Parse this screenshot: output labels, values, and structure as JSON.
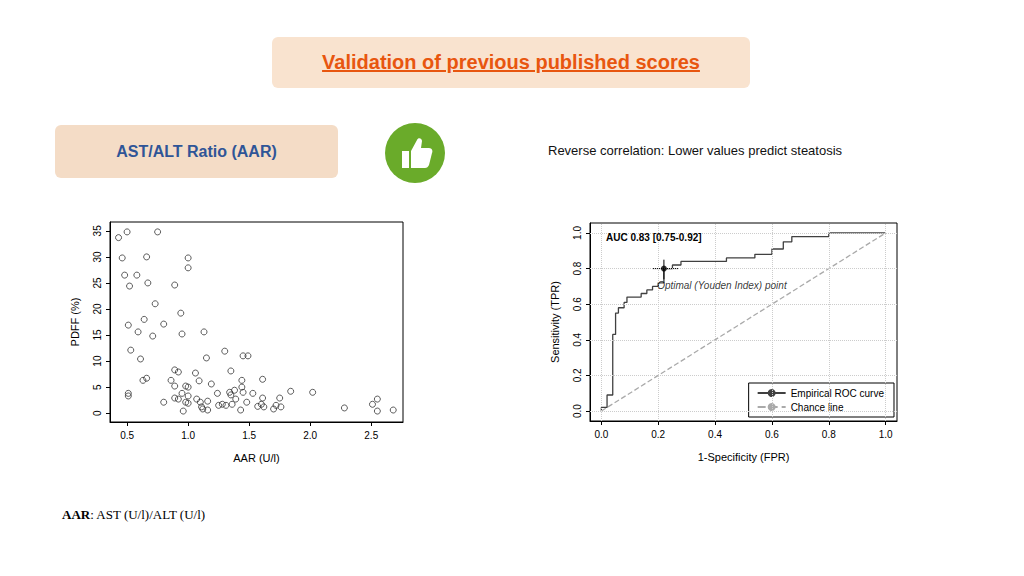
{
  "header": {
    "title": "Validation of previous published scores"
  },
  "label": "AST/ALT Ratio (AAR)",
  "note": "Reverse correlation: Lower values predict steatosis",
  "footnote": {
    "term": "AAR",
    "text": ": AST (U/l)/ALT (U/l)"
  },
  "chart_data": [
    {
      "type": "scatter",
      "x_label": "AAR (U/l)",
      "y_label": "PDFF (%)",
      "x": [
        0.43,
        0.5,
        0.75,
        0.46,
        0.66,
        1.0,
        1.0,
        0.48,
        0.58,
        0.52,
        0.67,
        0.89,
        0.73,
        0.8,
        0.64,
        0.51,
        0.94,
        0.71,
        0.59,
        0.95,
        1.13,
        0.53,
        1.3,
        1.45,
        1.49,
        0.61,
        1.15,
        0.63,
        0.66,
        0.89,
        0.92,
        1.06,
        0.86,
        1.09,
        1.35,
        1.61,
        0.51,
        0.51,
        0.89,
        0.98,
        1.0,
        1.19,
        1.44,
        1.44,
        0.89,
        0.92,
        0.95,
        1.0,
        1.07,
        1.16,
        1.24,
        1.34,
        1.35,
        1.39,
        1.38,
        1.45,
        1.53,
        1.61,
        1.75,
        1.84,
        2.02,
        2.55,
        2.51,
        0.8,
        0.98,
        1.1,
        0.96,
        1.12,
        1.16,
        1.25,
        1.28,
        1.31,
        1.43,
        1.48,
        1.57,
        1.6,
        1.62,
        1.7,
        1.72,
        1.76,
        2.28,
        2.55,
        2.68,
        1.11,
        1.0,
        1.36
      ],
      "values": [
        33.7,
        34.8,
        34.8,
        29.8,
        30,
        29.8,
        27.9,
        26.5,
        26.5,
        24.4,
        25,
        24.6,
        21,
        17.1,
        18,
        16.9,
        19.2,
        14.8,
        15.6,
        15.2,
        15.6,
        12.1,
        11.9,
        11,
        11,
        10.4,
        10.6,
        6.3,
        6.7,
        8.3,
        7.9,
        7.7,
        6.3,
        6.2,
        8.1,
        6.5,
        3.8,
        3.3,
        5.2,
        5.2,
        5,
        5.6,
        6.3,
        5,
        2.9,
        2.7,
        3.8,
        3.3,
        2.7,
        2.3,
        3.8,
        4,
        3.5,
        2.7,
        4.4,
        4,
        3.8,
        2.9,
        2.9,
        4.2,
        4,
        2.7,
        1.7,
        2.1,
        2.1,
        2.1,
        0.4,
        0.8,
        0.6,
        1.5,
        1.7,
        1.5,
        0.6,
        2.1,
        1.3,
        1.7,
        1.2,
        0.8,
        1.5,
        1.2,
        1,
        0.4,
        0.6,
        1.2,
        1.9,
        1.7
      ],
      "color": "#333333",
      "marker": "circle",
      "xlim": [
        0.36,
        2.76
      ],
      "xticks": [
        0.5,
        {
          "value": 1,
          "label": "1.0"
        },
        1.5,
        {
          "value": 2,
          "label": "2.0"
        },
        2.5
      ],
      "ylim": [
        -1.7,
        36.7
      ],
      "yticks": [
        0,
        5,
        10,
        15,
        20,
        25,
        30,
        35
      ],
      "grid": false
    },
    {
      "type": "line",
      "x_label": "1-Specificity (FPR)",
      "y_label": "Sensitivity (TPR)",
      "annotation": "AUC 0.83 [0.75-0.92]",
      "series": [
        {
          "name": "Empirical ROC curve",
          "color": "#404040",
          "line_style": "solid",
          "x": [
            0,
            0,
            0.02,
            0.02,
            0.04,
            0.04,
            0.05,
            0.05,
            0.06,
            0.06,
            0.08,
            0.08,
            0.09,
            0.09,
            0.14,
            0.14,
            0.16,
            0.16,
            0.18,
            0.18,
            0.2,
            0.2,
            0.22,
            0.22,
            0.25,
            0.25,
            0.28,
            0.28,
            0.44,
            0.44,
            0.54,
            0.54,
            0.6,
            0.6,
            0.64,
            0.64,
            0.67,
            0.67,
            0.8,
            0.8,
            1.0
          ],
          "values": [
            0,
            0.02,
            0.02,
            0.09,
            0.09,
            0.43,
            0.43,
            0.55,
            0.55,
            0.58,
            0.58,
            0.61,
            0.61,
            0.64,
            0.64,
            0.66,
            0.66,
            0.68,
            0.68,
            0.7,
            0.7,
            0.72,
            0.72,
            0.8,
            0.8,
            0.82,
            0.82,
            0.84,
            0.84,
            0.86,
            0.86,
            0.88,
            0.88,
            0.91,
            0.91,
            0.95,
            0.95,
            0.98,
            0.98,
            1.0,
            1.0
          ]
        },
        {
          "name": "Chance line",
          "color": "#aaaaaa",
          "line_style": "dashed",
          "x": [
            0,
            1
          ],
          "values": [
            0,
            1
          ]
        }
      ],
      "optimal_point": {
        "label": "Optimal (Youden Index) point",
        "x": 0.22,
        "y": 0.8,
        "x_range": [
          0.18,
          0.27
        ],
        "y_range": [
          0.74,
          0.85
        ],
        "color": "#000000"
      },
      "xlim": [
        -0.04,
        1.04
      ],
      "xticks": [
        {
          "value": 0,
          "label": "0.0"
        },
        0.2,
        0.4,
        0.6,
        0.8,
        {
          "value": 1,
          "label": "1.0"
        }
      ],
      "ylim": [
        -0.056,
        1.056
      ],
      "yticks": [
        {
          "value": 0,
          "label": "0.0"
        },
        0.2,
        0.4,
        0.6,
        0.8,
        {
          "value": 1,
          "label": "1.0"
        }
      ],
      "grid": true,
      "legend": "bottom right"
    }
  ]
}
